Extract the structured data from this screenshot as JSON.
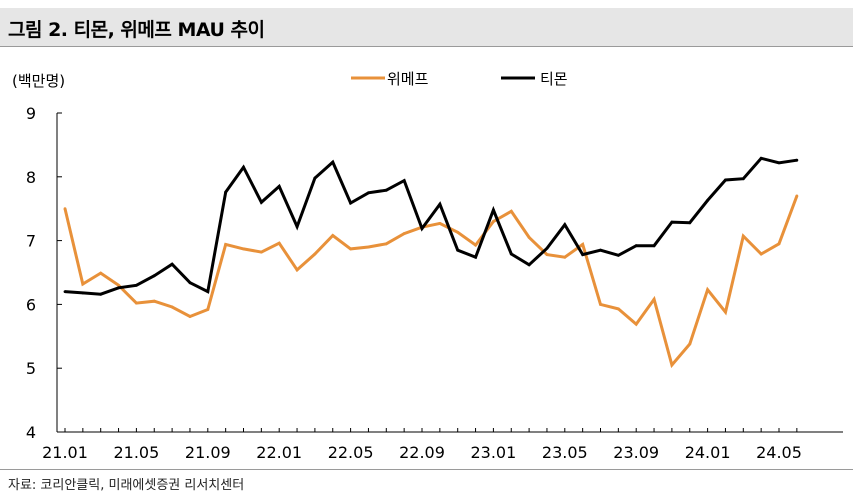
{
  "header": {
    "title": "그림 2. 티몬, 위메프 MAU 추이"
  },
  "footer": {
    "source": "자료: 코리안클릭, 미래에셋증권 리서치센터"
  },
  "chart_data": {
    "type": "line",
    "title": "",
    "xlabel": "",
    "ylabel": "(백만명)",
    "ylim": [
      4,
      9
    ],
    "yticks": [
      "4",
      "5",
      "6",
      "7",
      "8",
      "9"
    ],
    "xtick_labels": [
      "21.01",
      "21.05",
      "21.09",
      "22.01",
      "22.05",
      "22.09",
      "23.01",
      "23.05",
      "23.09",
      "24.01",
      "24.05"
    ],
    "x": [
      "21.01",
      "21.02",
      "21.03",
      "21.04",
      "21.05",
      "21.06",
      "21.07",
      "21.08",
      "21.09",
      "21.10",
      "21.11",
      "21.12",
      "22.01",
      "22.02",
      "22.03",
      "22.04",
      "22.05",
      "22.06",
      "22.07",
      "22.08",
      "22.09",
      "22.10",
      "22.11",
      "22.12",
      "23.01",
      "23.02",
      "23.03",
      "23.04",
      "23.05",
      "23.06",
      "23.07",
      "23.08",
      "23.09",
      "23.10",
      "23.11",
      "23.12",
      "24.01",
      "24.02",
      "24.03",
      "24.04",
      "24.05",
      "24.06"
    ],
    "legend_position": "top-center",
    "grid": false,
    "series": [
      {
        "name": "위메프",
        "color": "#E8913A",
        "values": [
          7.5,
          6.32,
          6.49,
          6.3,
          6.02,
          6.05,
          5.96,
          5.81,
          5.92,
          6.94,
          6.87,
          6.82,
          6.96,
          6.54,
          6.79,
          7.08,
          6.87,
          6.9,
          6.95,
          7.11,
          7.21,
          7.27,
          7.13,
          6.93,
          7.3,
          7.46,
          7.05,
          6.78,
          6.74,
          6.94,
          6.0,
          5.93,
          5.69,
          6.08,
          5.05,
          5.38,
          6.23,
          5.88,
          7.07,
          6.79,
          6.95,
          7.7
        ]
      },
      {
        "name": "티몬",
        "color": "#000000",
        "values": [
          6.2,
          6.18,
          6.16,
          6.26,
          6.3,
          6.45,
          6.63,
          6.34,
          6.2,
          7.76,
          8.15,
          7.6,
          7.85,
          7.22,
          7.98,
          8.23,
          7.59,
          7.75,
          7.79,
          7.94,
          7.19,
          7.57,
          6.85,
          6.74,
          7.48,
          6.79,
          6.62,
          6.88,
          7.25,
          6.78,
          6.85,
          6.77,
          6.92,
          6.92,
          7.29,
          7.28,
          7.63,
          7.95,
          7.97,
          8.29,
          8.22,
          8.26
        ]
      }
    ]
  }
}
